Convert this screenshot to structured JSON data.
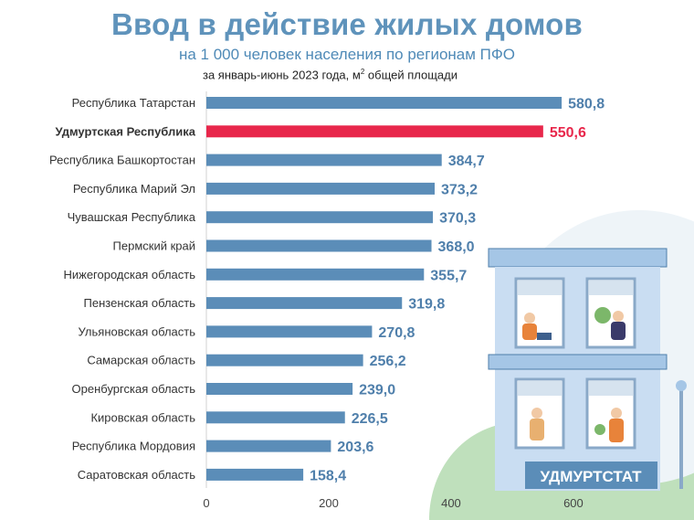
{
  "header": {
    "title": "Ввод в действие жилых домов",
    "subtitle": "на 1 000 человек населения по регионам ПФО",
    "note": "за январь-июнь 2023 года, м",
    "note_sup": "2",
    "note_tail": " общей площади"
  },
  "decoration": {
    "logo_text": "УДМУРТСТАТ"
  },
  "colors": {
    "bar": "#5b8db8",
    "highlight": "#e8274b",
    "value_label": "#4f7fab",
    "title": "#5f93bb"
  },
  "chart_data": {
    "type": "bar",
    "orientation": "horizontal",
    "categories": [
      "Республика Татарстан",
      "Удмуртская Республика",
      "Республика Башкортостан",
      "Республика  Марий Эл",
      "Чувашская Республика",
      "Пермский край",
      "Нижегородская область",
      "Пензенская область",
      "Ульяновская область",
      "Самарская область",
      "Оренбургская область",
      "Кировская область",
      "Республика Мордовия",
      "Саратовская область"
    ],
    "values": [
      580.8,
      550.6,
      384.7,
      373.2,
      370.3,
      368.0,
      355.7,
      319.8,
      270.8,
      256.2,
      239.0,
      226.5,
      203.6,
      158.4
    ],
    "value_labels": [
      "580,8",
      "550,6",
      "384,7",
      "373,2",
      "370,3",
      "368,0",
      "355,7",
      "319,8",
      "270,8",
      "256,2",
      "239,0",
      "226,5",
      "203,6",
      "158,4"
    ],
    "highlight_index": 1,
    "xlim": [
      0,
      760
    ],
    "x_ticks": [
      0,
      200,
      400,
      600
    ],
    "x_tick_labels": [
      "0",
      "200",
      "400",
      "600"
    ],
    "grid": false
  }
}
